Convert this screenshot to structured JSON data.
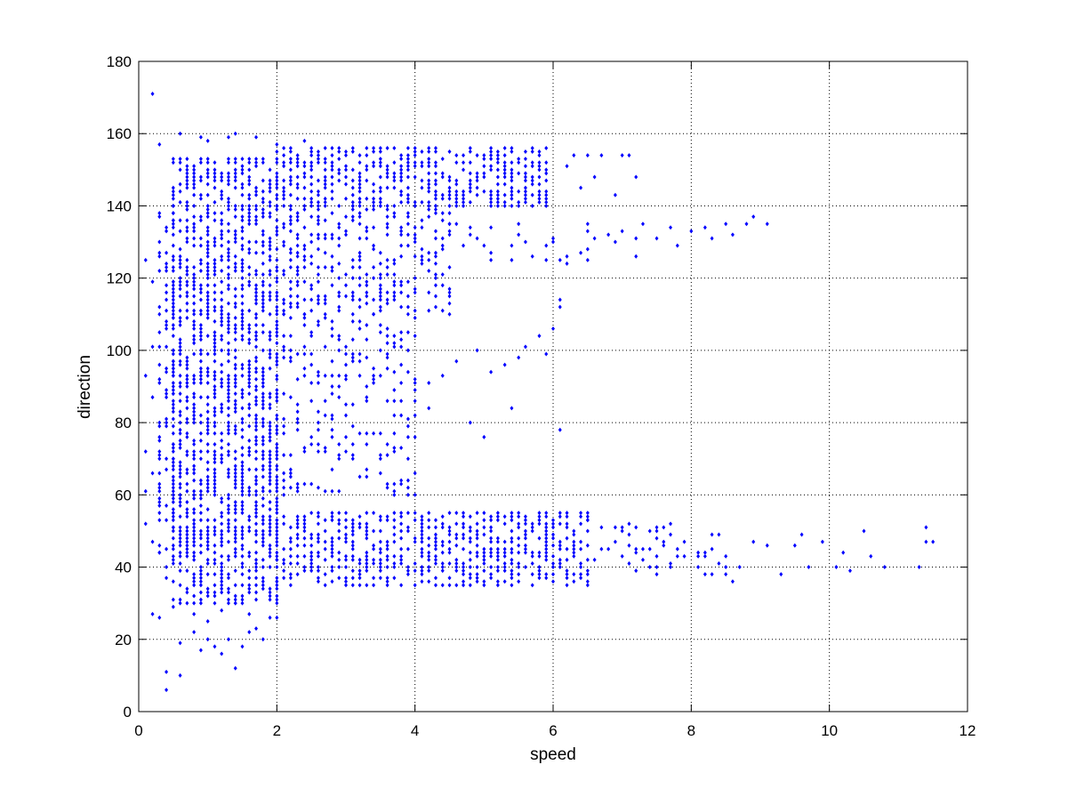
{
  "chart_data": {
    "type": "scatter",
    "title": "",
    "xlabel": "speed",
    "ylabel": "direction",
    "xlim": [
      0,
      12
    ],
    "ylim": [
      0,
      180
    ],
    "xticks": [
      0,
      2,
      4,
      6,
      8,
      10,
      12
    ],
    "yticks": [
      0,
      20,
      40,
      60,
      80,
      100,
      120,
      140,
      160,
      180
    ],
    "grid": true,
    "marker_color": "#0000ff",
    "series": [
      {
        "points": [
          [
            0.2,
            171
          ],
          [
            0.9,
            159
          ],
          [
            1.0,
            158
          ],
          [
            1.3,
            159
          ],
          [
            1.4,
            160
          ],
          [
            1.7,
            159
          ],
          [
            2.4,
            158
          ],
          [
            2.0,
            157
          ],
          [
            0.3,
            157
          ],
          [
            0.6,
            160
          ],
          [
            0.1,
            125
          ],
          [
            0.2,
            119
          ],
          [
            0.3,
            112
          ],
          [
            0.2,
            101
          ],
          [
            0.1,
            93
          ],
          [
            0.2,
            87
          ],
          [
            0.3,
            76
          ],
          [
            0.1,
            72
          ],
          [
            0.2,
            66
          ],
          [
            0.1,
            61
          ],
          [
            0.3,
            58
          ],
          [
            0.1,
            52
          ],
          [
            0.2,
            47
          ],
          [
            0.3,
            44
          ],
          [
            0.2,
            27
          ],
          [
            0.3,
            26
          ],
          [
            0.4,
            37
          ],
          [
            0.5,
            29
          ],
          [
            0.6,
            19
          ],
          [
            0.6,
            10
          ],
          [
            0.4,
            11
          ],
          [
            0.4,
            6
          ],
          [
            0.8,
            22
          ],
          [
            0.9,
            17
          ],
          [
            1.0,
            20
          ],
          [
            1.1,
            18
          ],
          [
            1.2,
            16
          ],
          [
            1.3,
            20
          ],
          [
            1.4,
            12
          ],
          [
            1.5,
            18
          ],
          [
            1.6,
            22
          ],
          [
            1.7,
            23
          ],
          [
            1.8,
            20
          ],
          [
            1.9,
            26
          ],
          [
            2.0,
            26
          ],
          [
            0.8,
            27
          ],
          [
            1.0,
            25
          ],
          [
            1.2,
            28
          ],
          [
            1.4,
            30
          ],
          [
            1.6,
            27
          ],
          [
            6.1,
            78
          ],
          [
            5.4,
            84
          ],
          [
            4.2,
            84
          ],
          [
            5.0,
            76
          ],
          [
            4.8,
            80
          ],
          [
            5.9,
            99
          ],
          [
            6.1,
            114
          ],
          [
            6.1,
            112
          ],
          [
            6.0,
            106
          ],
          [
            5.8,
            104
          ],
          [
            5.6,
            101
          ],
          [
            5.5,
            98
          ],
          [
            5.3,
            96
          ],
          [
            5.1,
            94
          ],
          [
            4.9,
            100
          ],
          [
            4.6,
            97
          ],
          [
            4.4,
            93
          ],
          [
            4.2,
            91
          ],
          [
            4.0,
            89
          ],
          [
            3.8,
            86
          ],
          [
            6.6,
            131
          ],
          [
            6.8,
            132
          ],
          [
            7.0,
            133
          ],
          [
            7.2,
            131
          ],
          [
            7.3,
            135
          ],
          [
            7.5,
            131
          ],
          [
            7.7,
            134
          ],
          [
            7.8,
            129
          ],
          [
            8.0,
            133
          ],
          [
            8.2,
            134
          ],
          [
            8.3,
            131
          ],
          [
            8.5,
            135
          ],
          [
            8.6,
            132
          ],
          [
            8.8,
            135
          ],
          [
            8.9,
            137
          ],
          [
            9.1,
            135
          ],
          [
            6.4,
            127
          ],
          [
            6.2,
            124
          ],
          [
            7.2,
            126
          ],
          [
            6.9,
            130
          ],
          [
            6.3,
            154
          ],
          [
            6.5,
            154
          ],
          [
            6.7,
            154
          ],
          [
            7.0,
            154
          ],
          [
            7.2,
            148
          ],
          [
            6.9,
            143
          ],
          [
            6.6,
            148
          ],
          [
            6.4,
            145
          ],
          [
            6.2,
            151
          ],
          [
            7.1,
            154
          ],
          [
            6.5,
            53
          ],
          [
            6.7,
            51
          ],
          [
            6.9,
            47
          ],
          [
            7.1,
            49
          ],
          [
            7.3,
            45
          ],
          [
            7.5,
            43
          ],
          [
            7.7,
            41
          ],
          [
            7.9,
            47
          ],
          [
            8.1,
            44
          ],
          [
            8.3,
            45
          ],
          [
            8.5,
            43
          ],
          [
            8.7,
            40
          ],
          [
            8.9,
            47
          ],
          [
            9.1,
            46
          ],
          [
            9.3,
            38
          ],
          [
            9.5,
            46
          ],
          [
            9.7,
            40
          ],
          [
            9.9,
            47
          ],
          [
            10.1,
            40
          ],
          [
            10.3,
            39
          ],
          [
            10.5,
            50
          ],
          [
            10.6,
            43
          ],
          [
            10.8,
            40
          ],
          [
            11.3,
            40
          ],
          [
            11.4,
            51
          ],
          [
            11.5,
            47
          ],
          [
            11.4,
            47
          ],
          [
            10.2,
            44
          ],
          [
            9.6,
            49
          ],
          [
            8.6,
            36
          ]
        ]
      }
    ]
  }
}
